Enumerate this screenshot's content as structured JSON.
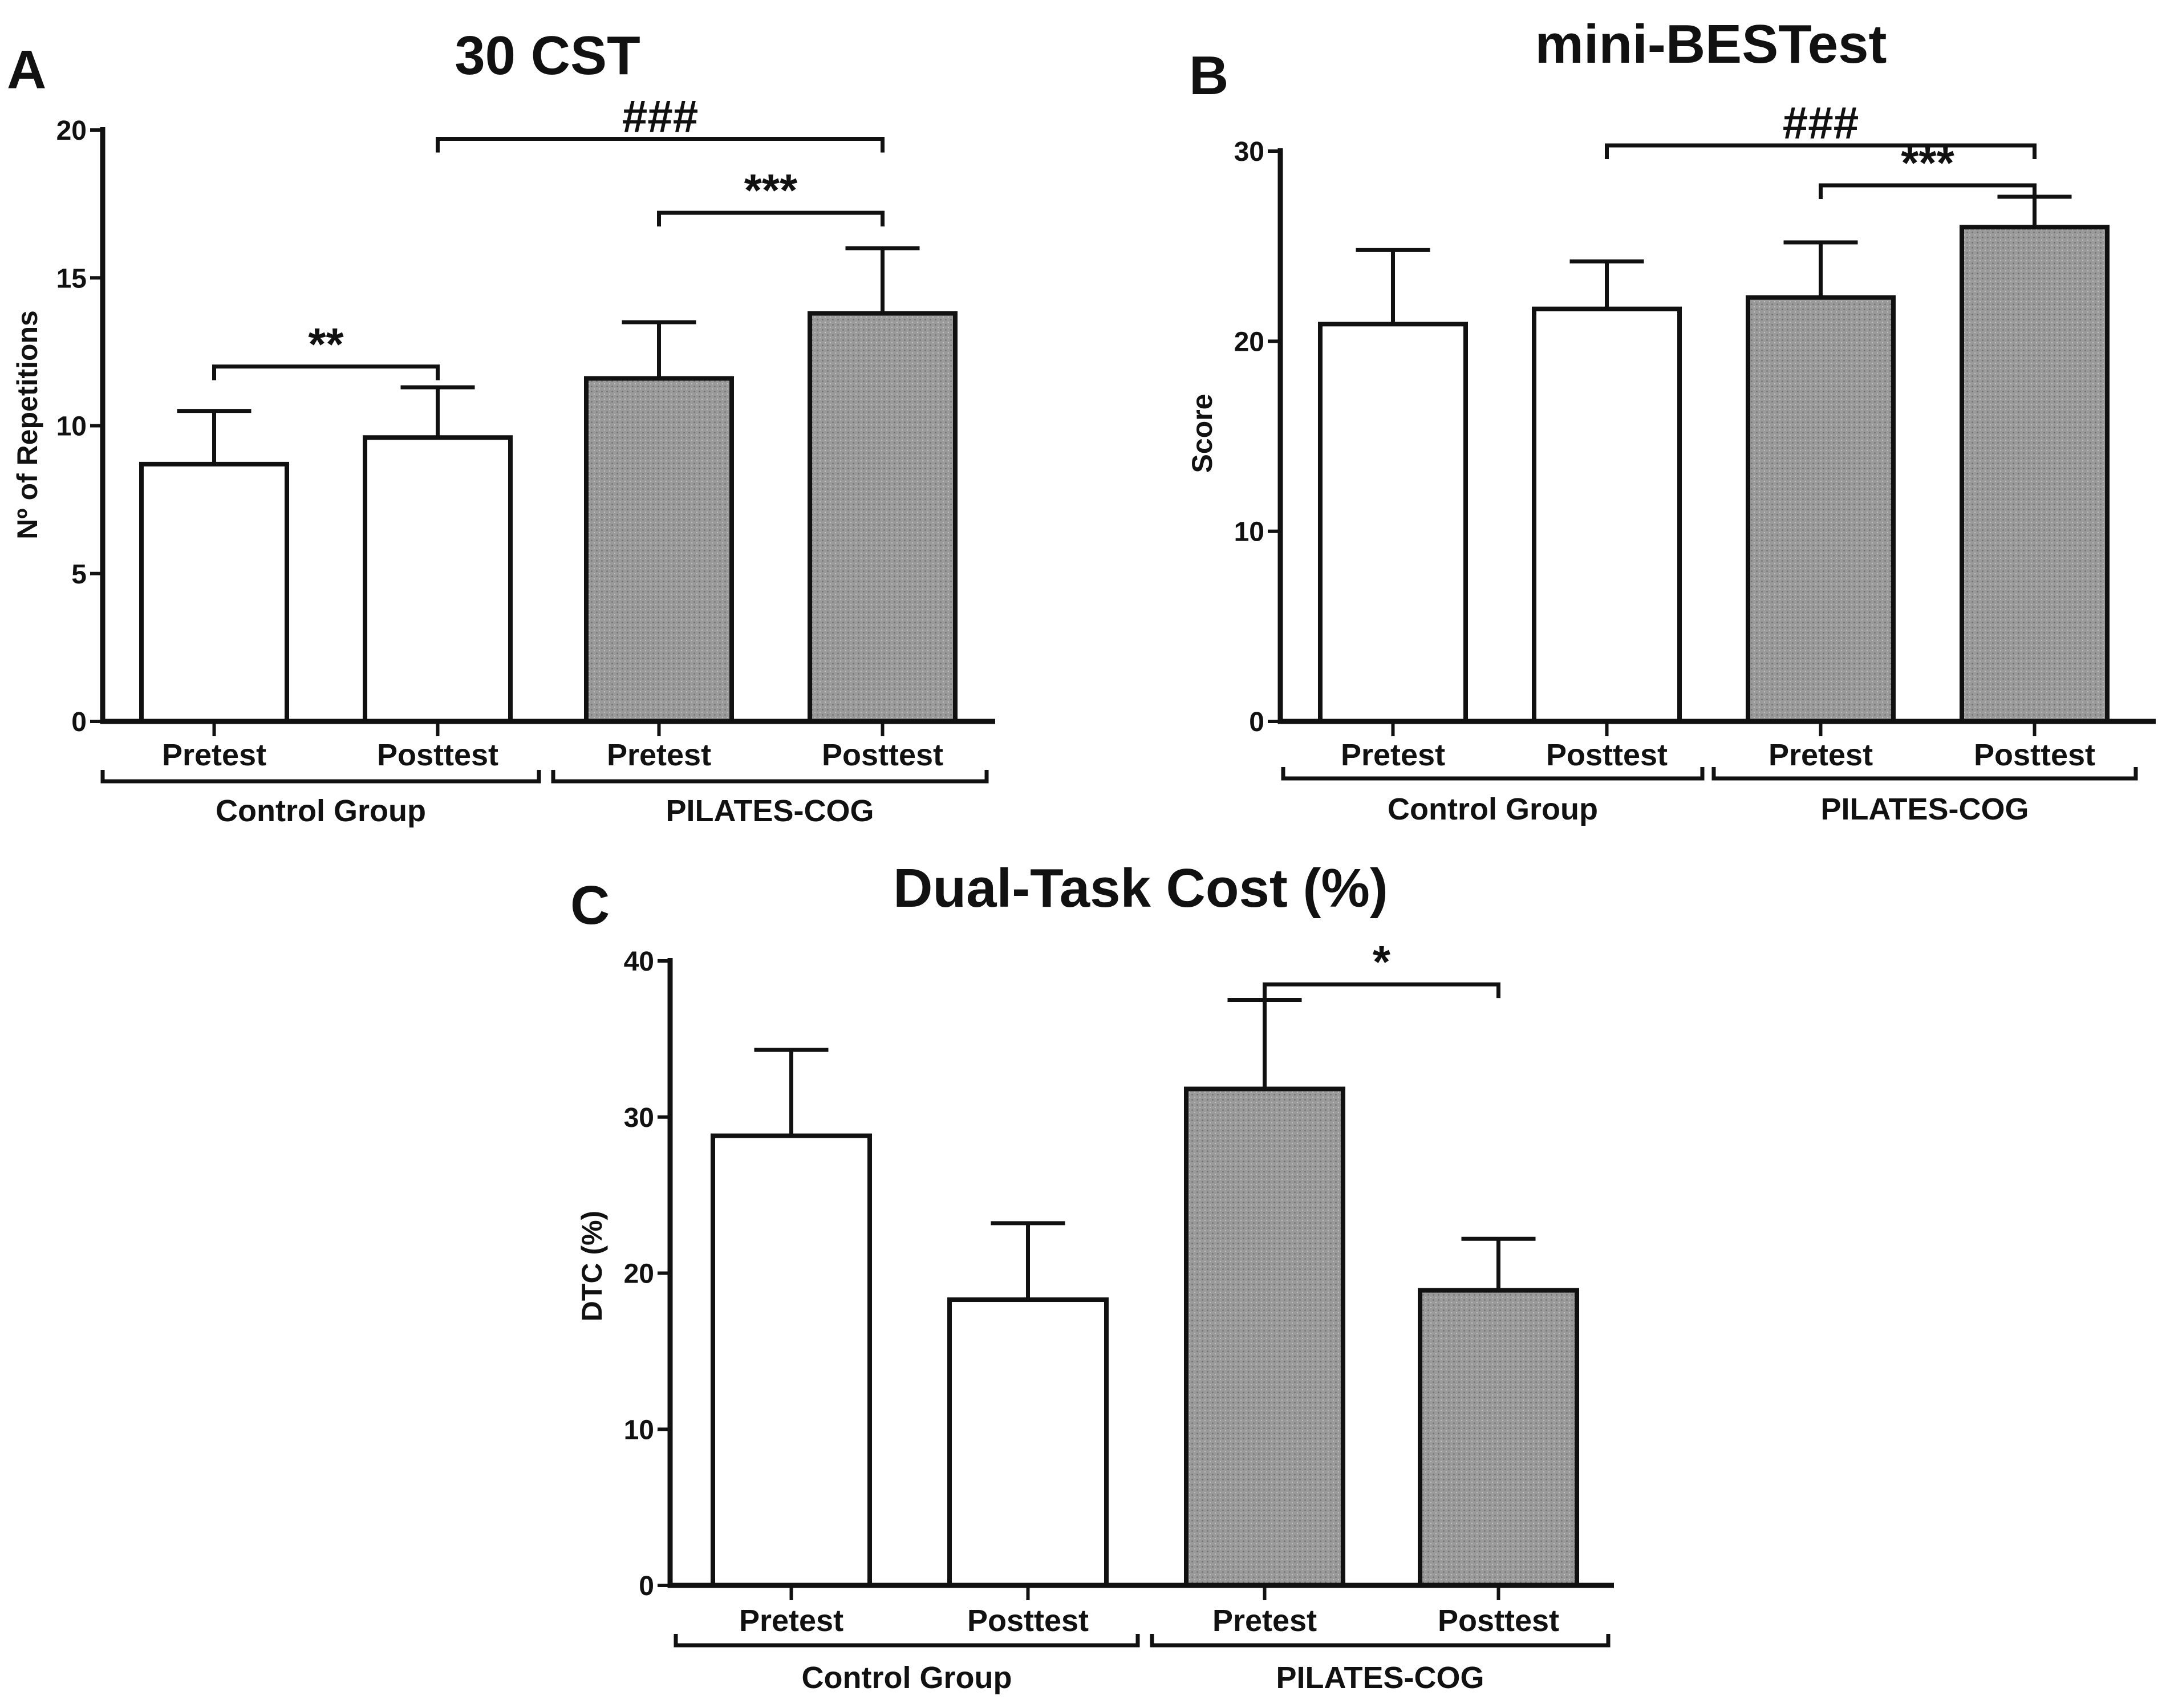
{
  "chart_data": [
    {
      "panel": "A",
      "type": "bar",
      "title": "30 CST",
      "xlabel": "",
      "ylabel": "Nº of Repetitions",
      "ylim": [
        0,
        20
      ],
      "yticks": [
        0,
        5,
        10,
        15,
        20
      ],
      "categories": [
        "Pretest",
        "Posttest",
        "Pretest",
        "Posttest"
      ],
      "groups": [
        {
          "label": "Control Group",
          "indices": [
            0,
            1
          ]
        },
        {
          "label": "PILATES-COG",
          "indices": [
            2,
            3
          ]
        }
      ],
      "values": [
        8.7,
        9.6,
        11.6,
        13.8
      ],
      "errors": [
        1.8,
        1.7,
        1.9,
        2.2
      ],
      "fills": [
        "white",
        "white",
        "gray",
        "gray"
      ],
      "significance": [
        {
          "from": 0,
          "to": 1,
          "label": "**",
          "y": 12.0
        },
        {
          "from": 2,
          "to": 3,
          "label": "***",
          "y": 17.2
        },
        {
          "from": 1,
          "to": 3,
          "label": "###",
          "y": 19.7
        }
      ]
    },
    {
      "panel": "B",
      "type": "bar",
      "title": "mini-BESTest",
      "xlabel": "",
      "ylabel": "Score",
      "ylim": [
        0,
        30
      ],
      "yticks": [
        0,
        10,
        20,
        30
      ],
      "categories": [
        "Pretest",
        "Posttest",
        "Pretest",
        "Posttest"
      ],
      "groups": [
        {
          "label": "Control Group",
          "indices": [
            0,
            1
          ]
        },
        {
          "label": "PILATES-COG",
          "indices": [
            2,
            3
          ]
        }
      ],
      "values": [
        20.9,
        21.7,
        22.3,
        26.0
      ],
      "errors": [
        3.9,
        2.5,
        2.9,
        1.6
      ],
      "fills": [
        "white",
        "white",
        "gray",
        "gray"
      ],
      "significance": [
        {
          "from": 2,
          "to": 3,
          "label": "***",
          "y": 28.2
        },
        {
          "from": 1,
          "to": 3,
          "label": "###",
          "y": 30.3
        }
      ]
    },
    {
      "panel": "C",
      "type": "bar",
      "title": "Dual-Task Cost  (%)",
      "xlabel": "",
      "ylabel": "DTC (%)",
      "ylim": [
        0,
        40
      ],
      "yticks": [
        0,
        10,
        20,
        30,
        40
      ],
      "categories": [
        "Pretest",
        "Posttest",
        "Pretest",
        "Posttest"
      ],
      "groups": [
        {
          "label": "Control Group",
          "indices": [
            0,
            1
          ]
        },
        {
          "label": "PILATES-COG",
          "indices": [
            2,
            3
          ]
        }
      ],
      "values": [
        28.8,
        18.3,
        31.8,
        18.9
      ],
      "errors": [
        5.5,
        4.9,
        5.7,
        3.3
      ],
      "fills": [
        "white",
        "white",
        "gray",
        "gray"
      ],
      "significance": [
        {
          "from": 2,
          "to": 3,
          "label": "*",
          "y": 38.5
        }
      ]
    }
  ],
  "colors": {
    "bar_gray": "#9a9a9a",
    "bar_white": "#ffffff",
    "ink": "#111111"
  }
}
